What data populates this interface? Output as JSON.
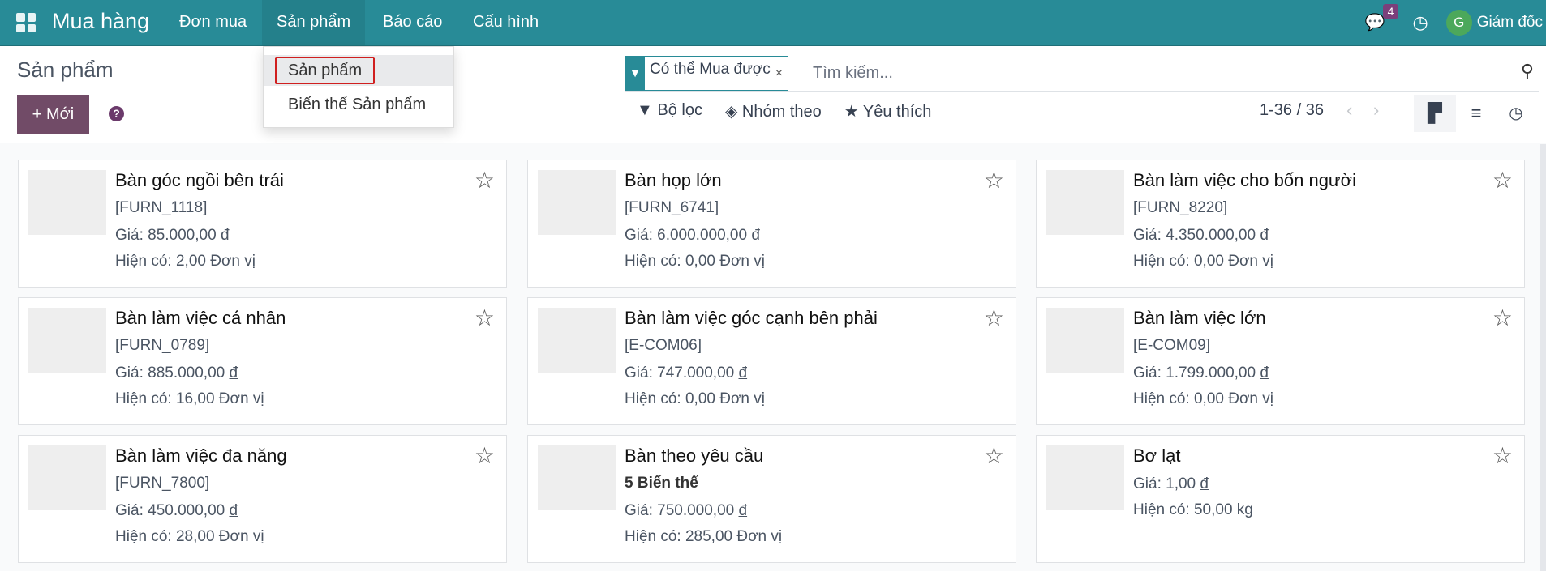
{
  "nav": {
    "app_title": "Mua hàng",
    "menus": [
      "Đơn mua",
      "Sản phẩm",
      "Báo cáo",
      "Cấu hình"
    ],
    "message_count": "4",
    "user_initial": "G",
    "user_name": "Giám đốc"
  },
  "dropdown": {
    "items": [
      "Sản phẩm",
      "Biến thể Sản phẩm"
    ]
  },
  "control": {
    "title": "Sản phẩm",
    "new_label": "Mới",
    "help": "?"
  },
  "search": {
    "facet": "Có thể Mua được",
    "facet_remove": "×",
    "placeholder": "Tìm kiếm..."
  },
  "tools": {
    "filter": "Bộ lọc",
    "group": "Nhóm theo",
    "favorites": "Yêu thích"
  },
  "pager": {
    "value": "1-36 / 36"
  },
  "views": {
    "active": "kanban"
  },
  "products": [
    {
      "name": "Bàn góc ngồi bên trái",
      "ref": "[FURN_1118]",
      "price": "Giá: 85.000,00",
      "stock": "Hiện có: 2,00 Đơn vị"
    },
    {
      "name": "Bàn họp lớn",
      "ref": "[FURN_6741]",
      "price": "Giá: 6.000.000,00",
      "stock": "Hiện có: 0,00 Đơn vị"
    },
    {
      "name": "Bàn làm việc cho bốn người",
      "ref": "[FURN_8220]",
      "price": "Giá: 4.350.000,00",
      "stock": "Hiện có: 0,00 Đơn vị"
    },
    {
      "name": "Bàn làm việc cá nhân",
      "ref": "[FURN_0789]",
      "price": "Giá: 885.000,00",
      "stock": "Hiện có: 16,00 Đơn vị"
    },
    {
      "name": "Bàn làm việc góc cạnh bên phải",
      "ref": "[E-COM06]",
      "price": "Giá: 747.000,00",
      "stock": "Hiện có: 0,00 Đơn vị"
    },
    {
      "name": "Bàn làm việc lớn",
      "ref": "[E-COM09]",
      "price": "Giá: 1.799.000,00",
      "stock": "Hiện có: 0,00 Đơn vị"
    },
    {
      "name": "Bàn làm việc đa năng",
      "ref": "[FURN_7800]",
      "price": "Giá: 450.000,00",
      "stock": "Hiện có: 28,00 Đơn vị"
    },
    {
      "name": "Bàn theo yêu cầu",
      "ref": "5 Biến thể",
      "price": "Giá: 750.000,00",
      "stock": "Hiện có: 285,00 Đơn vị"
    },
    {
      "name": "Bơ lạt",
      "ref": "",
      "price": "Giá: 1,00",
      "stock": "Hiện có: 50,00 kg"
    }
  ],
  "currency": "đ"
}
